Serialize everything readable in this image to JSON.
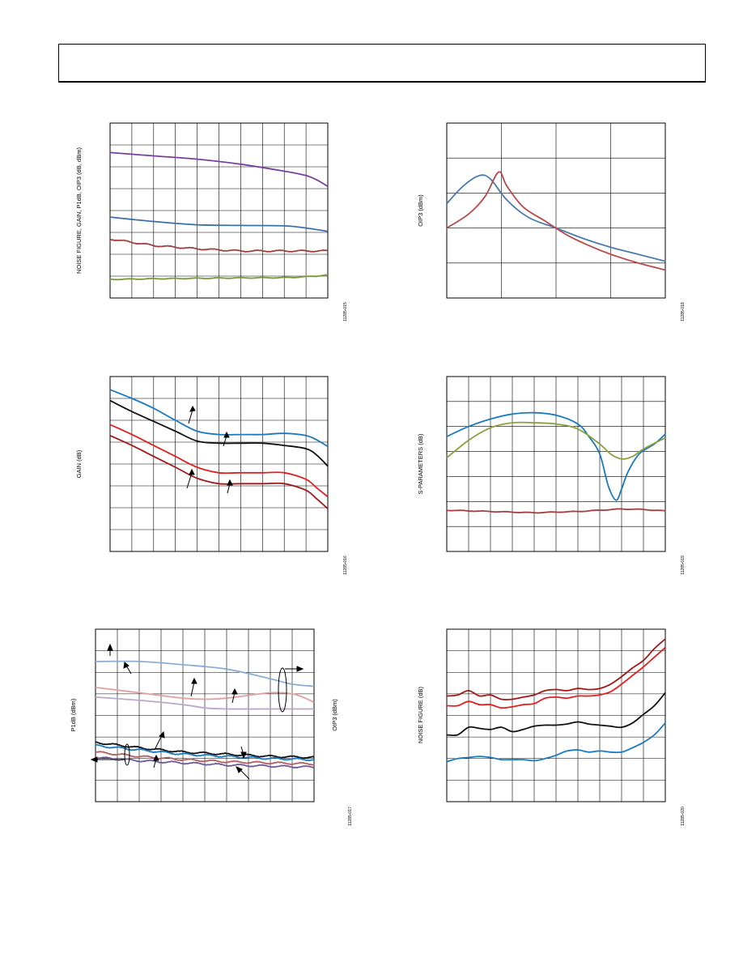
{
  "header": {
    "text": ""
  },
  "chart_data": [
    {
      "id": "c1",
      "type": "line",
      "ylabel": "NOISE FIGURE, GAIN, P1dB, OIP3 (dB, dBm)",
      "figure_id": "11285-015",
      "grid": {
        "cols": 10,
        "rows": 8
      },
      "xlim": [
        0,
        10
      ],
      "ylim": [
        0,
        8
      ],
      "series": [
        {
          "color": "#7a3ea0",
          "noise": 0,
          "x": [
            0,
            2,
            4,
            6,
            8,
            9,
            9.5,
            10
          ],
          "y": [
            6.65,
            6.5,
            6.35,
            6.12,
            5.8,
            5.6,
            5.4,
            5.1
          ]
        },
        {
          "color": "#3b6fa8",
          "noise": 0,
          "x": [
            0,
            2,
            4,
            6,
            8,
            9,
            10
          ],
          "y": [
            3.7,
            3.5,
            3.35,
            3.32,
            3.3,
            3.2,
            3.05
          ]
        },
        {
          "color": "#a04040",
          "noise": 0.04,
          "x": [
            0,
            2,
            4,
            6,
            8,
            10
          ],
          "y": [
            2.7,
            2.4,
            2.25,
            2.15,
            2.15,
            2.15
          ]
        },
        {
          "color": "#7a9a3a",
          "noise": 0.02,
          "x": [
            0,
            2,
            4,
            6,
            8,
            9,
            10
          ],
          "y": [
            0.85,
            0.88,
            0.9,
            0.92,
            0.93,
            0.97,
            1.05
          ]
        }
      ]
    },
    {
      "id": "c2",
      "type": "line",
      "ylabel": "OIP3 (dBm)",
      "figure_id": "11285-018",
      "grid": {
        "cols": 4,
        "rows": 5
      },
      "xlim": [
        0,
        4
      ],
      "ylim": [
        0,
        5
      ],
      "series": [
        {
          "color": "#4a7ab0",
          "noise": 0,
          "x": [
            0,
            0.3,
            0.6,
            0.8,
            1.1,
            1.5,
            2,
            2.5,
            3,
            3.5,
            4
          ],
          "y": [
            2.7,
            3.2,
            3.5,
            3.4,
            2.8,
            2.3,
            2.0,
            1.7,
            1.45,
            1.25,
            1.05
          ]
        },
        {
          "color": "#b84a4a",
          "noise": 0,
          "x": [
            0,
            0.4,
            0.7,
            0.95,
            1.1,
            1.4,
            1.8,
            2.2,
            2.6,
            3,
            3.5,
            4
          ],
          "y": [
            2.0,
            2.4,
            2.9,
            3.6,
            3.2,
            2.6,
            2.2,
            1.8,
            1.5,
            1.25,
            1.0,
            0.8
          ]
        }
      ]
    },
    {
      "id": "c3",
      "type": "line",
      "ylabel": "GAIN (dB)",
      "figure_id": "11285-016",
      "grid": {
        "cols": 10,
        "rows": 8
      },
      "xlim": [
        0,
        10
      ],
      "ylim": [
        0,
        8
      ],
      "series": [
        {
          "color": "#1a7ac0",
          "noise": 0,
          "x": [
            0,
            1,
            2,
            3,
            4,
            5,
            6,
            7,
            8,
            9,
            9.5,
            10
          ],
          "y": [
            7.4,
            7.0,
            6.55,
            6.0,
            5.5,
            5.35,
            5.35,
            5.35,
            5.4,
            5.3,
            5.1,
            4.8
          ]
        },
        {
          "color": "#111111",
          "noise": 0,
          "x": [
            0,
            1,
            2,
            3,
            4,
            5,
            6,
            7,
            8,
            9,
            9.5,
            10
          ],
          "y": [
            6.9,
            6.4,
            5.95,
            5.5,
            5.05,
            4.95,
            4.95,
            4.95,
            4.85,
            4.7,
            4.4,
            3.9
          ]
        },
        {
          "color": "#e02020",
          "noise": 0,
          "x": [
            0,
            1,
            2,
            3,
            4,
            5,
            6,
            7,
            8,
            9,
            9.5,
            10
          ],
          "y": [
            5.8,
            5.35,
            4.85,
            4.35,
            3.85,
            3.6,
            3.6,
            3.6,
            3.6,
            3.3,
            2.9,
            2.5
          ]
        },
        {
          "color": "#a01818",
          "noise": 0,
          "x": [
            0,
            1,
            2,
            3,
            4,
            5,
            6,
            7,
            8,
            9,
            9.5,
            10
          ],
          "y": [
            5.3,
            4.85,
            4.35,
            3.85,
            3.35,
            3.1,
            3.1,
            3.1,
            3.1,
            2.8,
            2.4,
            1.95
          ]
        }
      ]
    },
    {
      "id": "c4",
      "type": "line",
      "ylabel": "S-PARAMETERS (dB)",
      "figure_id": "11285-019",
      "grid": {
        "cols": 10,
        "rows": 7
      },
      "xlim": [
        0,
        10
      ],
      "ylim": [
        0,
        7
      ],
      "series": [
        {
          "color": "#1a7ac0",
          "noise": 0,
          "x": [
            0,
            1,
            2,
            3,
            4,
            5,
            6,
            6.5,
            7,
            7.4,
            7.75,
            8.0,
            8.3,
            8.8,
            9.5,
            10
          ],
          "y": [
            4.6,
            5.0,
            5.3,
            5.5,
            5.55,
            5.45,
            5.1,
            4.6,
            3.9,
            2.6,
            2.05,
            2.5,
            3.2,
            3.9,
            4.3,
            4.7
          ]
        },
        {
          "color": "#8aa03a",
          "noise": 0,
          "x": [
            0,
            1,
            2,
            3,
            4,
            5,
            6,
            7,
            7.5,
            8,
            8.5,
            9,
            10
          ],
          "y": [
            3.75,
            4.45,
            4.95,
            5.15,
            5.15,
            5.1,
            4.9,
            4.3,
            3.9,
            3.7,
            3.8,
            4.1,
            4.55
          ]
        },
        {
          "color": "#a04040",
          "noise": 0.015,
          "x": [
            0,
            2,
            4,
            6,
            8,
            9,
            10
          ],
          "y": [
            1.65,
            1.6,
            1.55,
            1.6,
            1.7,
            1.68,
            1.62
          ]
        }
      ]
    },
    {
      "id": "c5",
      "type": "line",
      "ylabel": "P1dB (dBm)",
      "ylabel_right": "OIP3 (dBm)",
      "figure_id": "11285-017",
      "grid": {
        "cols": 10,
        "rows": 8
      },
      "xlim": [
        0,
        10
      ],
      "ylim": [
        0,
        8
      ],
      "series": [
        {
          "color": "#8aaed4",
          "noise": 0,
          "x": [
            0,
            2,
            4,
            6,
            8,
            9,
            10
          ],
          "y": [
            6.5,
            6.5,
            6.35,
            6.15,
            5.7,
            5.45,
            5.35
          ]
        },
        {
          "color": "#e0a0a0",
          "noise": 0,
          "x": [
            0,
            2,
            4,
            5,
            6,
            8,
            9,
            9.6,
            10
          ],
          "y": [
            5.3,
            5.05,
            4.8,
            4.75,
            4.8,
            5.05,
            5.0,
            4.8,
            4.6
          ]
        },
        {
          "color": "#b8a8cc",
          "noise": 0,
          "x": [
            0,
            2,
            4,
            5,
            6,
            8,
            10
          ],
          "y": [
            4.85,
            4.7,
            4.5,
            4.35,
            4.3,
            4.3,
            4.3
          ]
        },
        {
          "color": "#111111",
          "noise": 0.05,
          "x": [
            0,
            2,
            4,
            6,
            8,
            10
          ],
          "y": [
            2.75,
            2.5,
            2.3,
            2.2,
            2.1,
            2.05
          ]
        },
        {
          "color": "#1a7ac0",
          "noise": 0.05,
          "x": [
            0,
            2,
            4,
            6,
            8,
            10
          ],
          "y": [
            2.6,
            2.4,
            2.2,
            2.1,
            2.0,
            1.95
          ]
        },
        {
          "color": "#b06060",
          "noise": 0.05,
          "x": [
            0,
            2,
            4,
            6,
            8,
            10
          ],
          "y": [
            2.3,
            2.1,
            1.95,
            1.85,
            1.8,
            1.75
          ]
        },
        {
          "color": "#705a98",
          "noise": 0.05,
          "x": [
            0,
            2,
            4,
            6,
            8,
            10
          ],
          "y": [
            2.05,
            1.9,
            1.8,
            1.7,
            1.65,
            1.6
          ]
        }
      ]
    },
    {
      "id": "c6",
      "type": "line",
      "ylabel": "NOISE FIGURE (dB)",
      "figure_id": "11285-020",
      "grid": {
        "cols": 10,
        "rows": 8
      },
      "xlim": [
        0,
        10
      ],
      "ylim": [
        0,
        8
      ],
      "series": [
        {
          "color": "#a01818",
          "noise": 0,
          "x": [
            0,
            0.5,
            1,
            1.5,
            2,
            2.5,
            3,
            3.5,
            4,
            4.5,
            5,
            5.5,
            6,
            6.5,
            7,
            7.5,
            8,
            8.5,
            9,
            9.5,
            10
          ],
          "y": [
            4.9,
            4.95,
            5.15,
            4.9,
            4.95,
            4.75,
            4.75,
            4.85,
            4.95,
            5.15,
            5.2,
            5.15,
            5.25,
            5.2,
            5.25,
            5.45,
            5.8,
            6.2,
            6.55,
            7.1,
            7.55
          ]
        },
        {
          "color": "#e02020",
          "noise": 0,
          "x": [
            0,
            0.5,
            1,
            1.5,
            2,
            2.5,
            3,
            3.5,
            4,
            4.5,
            5,
            5.5,
            6,
            6.5,
            7,
            7.5,
            8,
            8.5,
            9,
            9.5,
            10
          ],
          "y": [
            4.45,
            4.45,
            4.65,
            4.5,
            4.5,
            4.35,
            4.4,
            4.5,
            4.55,
            4.8,
            4.85,
            4.8,
            4.9,
            4.9,
            4.95,
            5.1,
            5.45,
            5.85,
            6.25,
            6.7,
            7.15
          ]
        },
        {
          "color": "#111111",
          "noise": 0,
          "x": [
            0,
            0.5,
            1,
            1.5,
            2,
            2.5,
            3,
            3.5,
            4,
            4.5,
            5,
            5.5,
            6,
            6.5,
            7,
            7.5,
            8,
            8.5,
            9,
            9.5,
            10
          ],
          "y": [
            3.1,
            3.1,
            3.45,
            3.4,
            3.35,
            3.45,
            3.25,
            3.35,
            3.5,
            3.55,
            3.55,
            3.6,
            3.7,
            3.6,
            3.55,
            3.5,
            3.45,
            3.65,
            4.05,
            4.45,
            5.05
          ]
        },
        {
          "color": "#1a7ac0",
          "noise": 0,
          "x": [
            0,
            0.5,
            1,
            1.5,
            2,
            2.5,
            3,
            3.5,
            4,
            4.5,
            5,
            5.5,
            6,
            6.5,
            7,
            7.5,
            8,
            8.5,
            9,
            9.5,
            10
          ],
          "y": [
            1.85,
            2.0,
            2.05,
            2.1,
            2.05,
            1.95,
            1.95,
            1.95,
            1.9,
            2.0,
            2.15,
            2.35,
            2.4,
            2.3,
            2.35,
            2.3,
            2.3,
            2.5,
            2.75,
            3.1,
            3.65
          ]
        }
      ]
    }
  ]
}
